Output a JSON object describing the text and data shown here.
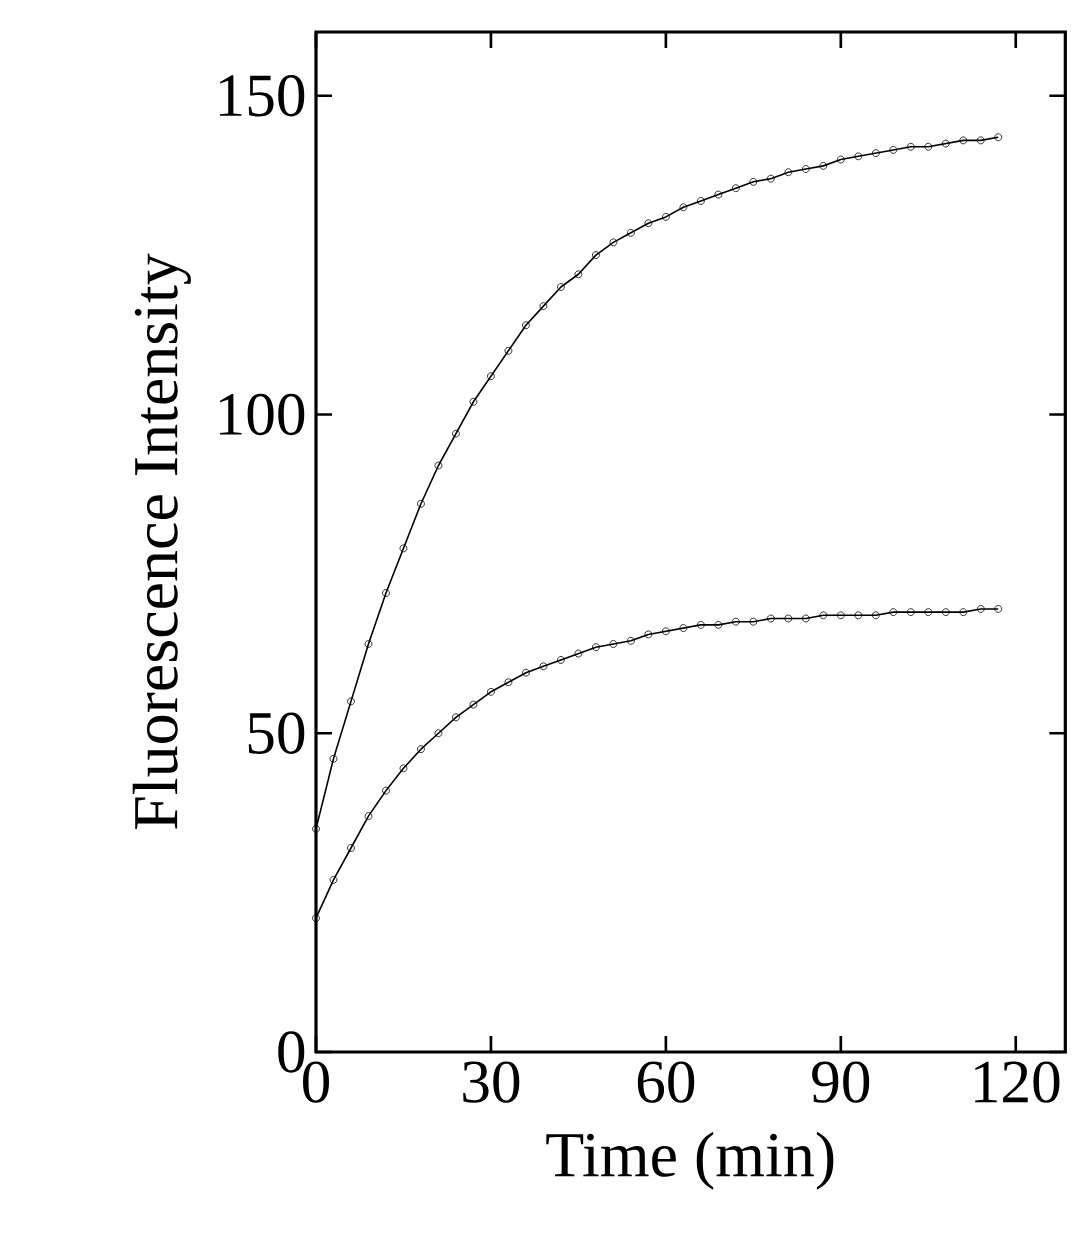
{
  "chart_data": {
    "type": "line",
    "xlabel": "Time (min)",
    "ylabel": "Fluorescence Intensity",
    "marker": "circle",
    "line_style": "solid",
    "x": [
      0,
      3,
      6,
      9,
      12,
      15,
      18,
      21,
      24,
      27,
      30,
      33,
      36,
      39,
      42,
      45,
      48,
      51,
      54,
      57,
      60,
      63,
      66,
      69,
      72,
      75,
      78,
      81,
      84,
      87,
      90,
      93,
      96,
      99,
      102,
      105,
      108,
      111,
      114,
      117
    ],
    "series": [
      {
        "color": "#000000",
        "values": [
          35,
          46,
          55,
          64,
          72,
          79,
          86,
          92,
          97,
          102,
          106,
          110,
          114,
          117,
          120,
          122,
          125,
          127,
          128.5,
          130,
          131,
          132.5,
          133.5,
          134.5,
          135.5,
          136.5,
          137,
          138,
          138.5,
          139,
          140,
          140.5,
          141,
          141.5,
          142,
          142,
          142.5,
          143,
          143,
          143.5
        ]
      },
      {
        "color": "#000000",
        "values": [
          21,
          27,
          32,
          37,
          41,
          44.5,
          47.5,
          50,
          52.5,
          54.5,
          56.5,
          58,
          59.5,
          60.5,
          61.5,
          62.5,
          63.5,
          64,
          64.5,
          65.5,
          66,
          66.5,
          67,
          67,
          67.5,
          67.5,
          68,
          68,
          68,
          68.5,
          68.5,
          68.5,
          68.5,
          69,
          69,
          69,
          69,
          69,
          69.5,
          69.5
        ]
      }
    ],
    "xlim": [
      0,
      128.5
    ],
    "ylim": [
      0,
      160
    ],
    "xticks": [
      0,
      30,
      60,
      90,
      120
    ],
    "yticks": [
      0,
      50,
      100,
      150
    ]
  }
}
